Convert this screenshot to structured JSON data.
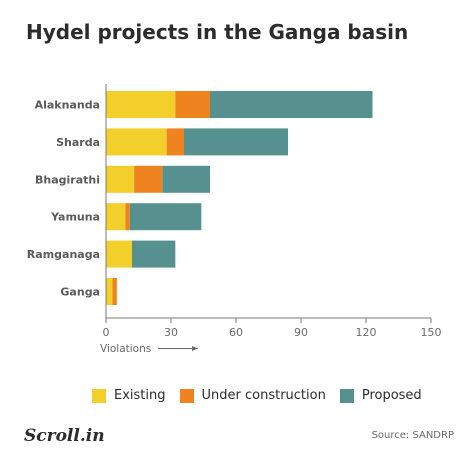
{
  "title": "Hydel projects in the Ganga basin",
  "chart_data": {
    "type": "bar",
    "orientation": "horizontal",
    "stacked": true,
    "categories": [
      "Alaknanda",
      "Sharda",
      "Bhagirathi",
      "Yamuna",
      "Ramganaga",
      "Ganga"
    ],
    "series": [
      {
        "name": "Existing",
        "color": "#f2cf2a",
        "values": [
          32,
          28,
          13,
          9,
          12,
          3
        ]
      },
      {
        "name": "Under construction",
        "color": "#ee8320",
        "values": [
          16,
          8,
          13,
          2,
          0,
          2
        ]
      },
      {
        "name": "Proposed",
        "color": "#57918f",
        "values": [
          75,
          48,
          22,
          33,
          20,
          0
        ]
      }
    ],
    "xlim": [
      0,
      150
    ],
    "xticks": [
      0,
      30,
      60,
      90,
      120,
      150
    ],
    "xlabel": "Violations",
    "grid": false,
    "legend_position": "bottom"
  },
  "footer": {
    "brand": "Scroll.in",
    "source": "Source: SANDRP"
  }
}
